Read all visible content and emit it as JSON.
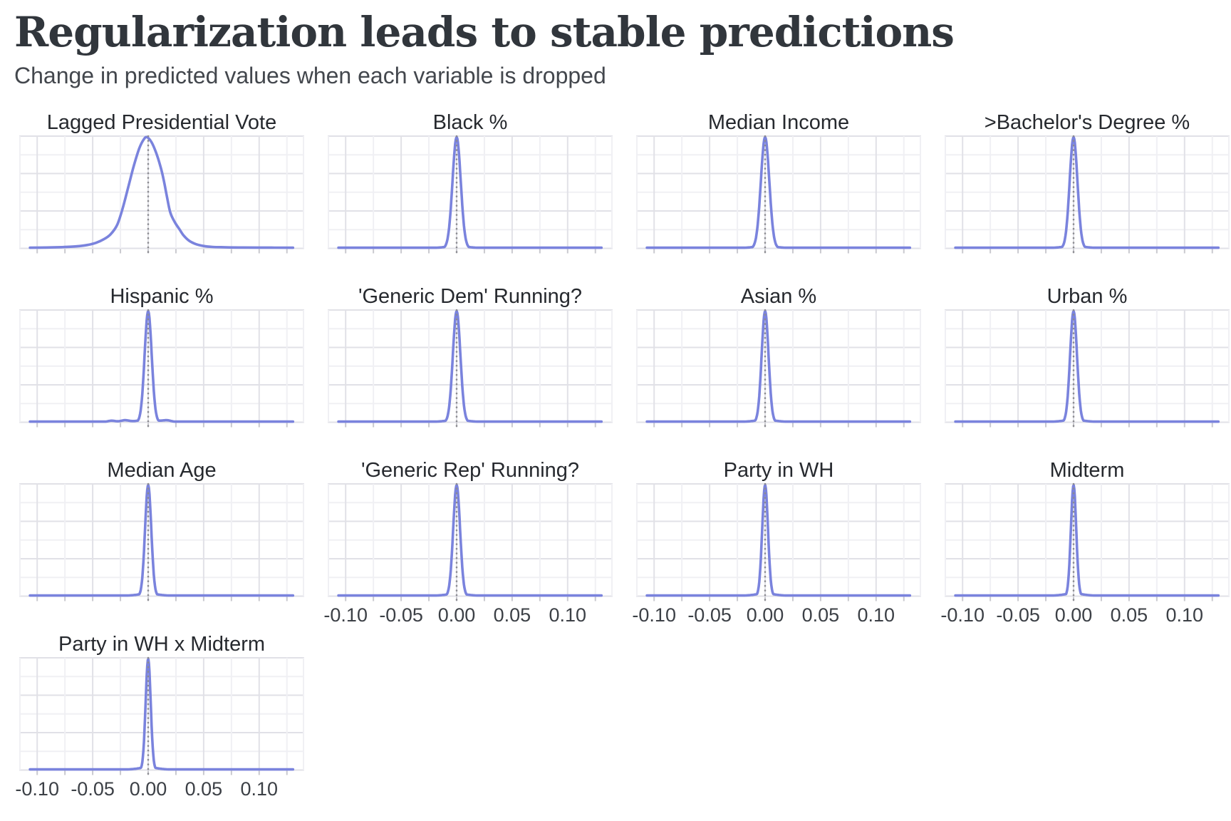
{
  "chart_data": {
    "type": "line",
    "title": "Regularization leads to stable predictions",
    "subtitle": "Change in predicted values when each variable is dropped",
    "x_axis": {
      "tick_values": [
        -0.1,
        -0.05,
        0.0,
        0.05,
        0.1
      ],
      "tick_labels": [
        "-0.10",
        "-0.05",
        "0.00",
        "0.05",
        "0.10"
      ],
      "domain": [
        -0.1162,
        0.1406
      ],
      "gridline_step": 0.025
    },
    "y_axis": {
      "label": "",
      "domain": [
        0,
        1
      ],
      "note": "unlabeled density axis, curves normalized to panel height"
    },
    "reference_line": {
      "x": 0.0,
      "style": "dotted"
    },
    "layout": {
      "rows": 4,
      "cols": 4,
      "legend": "none",
      "grid": "major-and-minor"
    },
    "panels": [
      {
        "label": "Lagged Presidential Vote",
        "row": 1,
        "col": 1,
        "x_axis_labels": false,
        "curve": {
          "kind": "profile",
          "center": 0.0,
          "points": [
            [
              -0.1065,
              0.006
            ],
            [
              -0.092,
              0.008
            ],
            [
              -0.078,
              0.011
            ],
            [
              -0.065,
              0.018
            ],
            [
              -0.055,
              0.03
            ],
            [
              -0.047,
              0.05
            ],
            [
              -0.04,
              0.082
            ],
            [
              -0.034,
              0.125
            ],
            [
              -0.028,
              0.21
            ],
            [
              -0.023,
              0.36
            ],
            [
              -0.018,
              0.55
            ],
            [
              -0.013,
              0.74
            ],
            [
              -0.008,
              0.9
            ],
            [
              -0.004,
              0.98
            ],
            [
              -0.001,
              1.0
            ],
            [
              0.003,
              0.955
            ],
            [
              0.007,
              0.865
            ],
            [
              0.011,
              0.74
            ],
            [
              0.014,
              0.615
            ],
            [
              0.017,
              0.46
            ],
            [
              0.02,
              0.32
            ],
            [
              0.024,
              0.235
            ],
            [
              0.028,
              0.175
            ],
            [
              0.032,
              0.115
            ],
            [
              0.037,
              0.068
            ],
            [
              0.043,
              0.038
            ],
            [
              0.05,
              0.021
            ],
            [
              0.058,
              0.013
            ],
            [
              0.068,
              0.01
            ],
            [
              0.082,
              0.008
            ],
            [
              0.1,
              0.007
            ],
            [
              0.1305,
              0.006
            ]
          ]
        }
      },
      {
        "label": "Black %",
        "row": 1,
        "col": 2,
        "x_axis_labels": false,
        "curve": {
          "kind": "spike",
          "center": 0.0,
          "sigma": 0.0037,
          "peak": 1.0
        }
      },
      {
        "label": "Median Income",
        "row": 1,
        "col": 3,
        "x_axis_labels": false,
        "curve": {
          "kind": "spike",
          "center": 0.0,
          "sigma": 0.0038,
          "peak": 1.0
        }
      },
      {
        "label": ">Bachelor's Degree %",
        "row": 1,
        "col": 4,
        "x_axis_labels": false,
        "curve": {
          "kind": "spike",
          "center": 0.0,
          "sigma": 0.0035,
          "peak": 1.0
        }
      },
      {
        "label": "Hispanic %",
        "row": 2,
        "col": 1,
        "x_axis_labels": false,
        "curve": {
          "kind": "spike",
          "center": 0.0,
          "sigma": 0.0032,
          "peak": 1.0,
          "bumps": [
            [
              -0.033,
              0.012
            ],
            [
              -0.021,
              0.014
            ],
            [
              0.017,
              0.012
            ]
          ]
        }
      },
      {
        "label": "'Generic Dem' Running?",
        "row": 2,
        "col": 2,
        "x_axis_labels": false,
        "curve": {
          "kind": "spike",
          "center": 0.0,
          "sigma": 0.0034,
          "peak": 1.0
        }
      },
      {
        "label": "Asian %",
        "row": 2,
        "col": 3,
        "x_axis_labels": false,
        "curve": {
          "kind": "spike",
          "center": 0.0,
          "sigma": 0.0031,
          "peak": 1.0
        }
      },
      {
        "label": "Urban %",
        "row": 2,
        "col": 4,
        "x_axis_labels": false,
        "curve": {
          "kind": "spike",
          "center": 0.0,
          "sigma": 0.0031,
          "peak": 1.0
        }
      },
      {
        "label": "Median Age",
        "row": 3,
        "col": 1,
        "x_axis_labels": false,
        "curve": {
          "kind": "spike",
          "center": 0.0,
          "sigma": 0.0028,
          "peak": 1.0
        }
      },
      {
        "label": "'Generic Rep' Running?",
        "row": 3,
        "col": 2,
        "x_axis_labels": true,
        "curve": {
          "kind": "spike",
          "center": 0.0,
          "sigma": 0.0031,
          "peak": 1.0
        }
      },
      {
        "label": "Party in WH",
        "row": 3,
        "col": 3,
        "x_axis_labels": true,
        "curve": {
          "kind": "spike",
          "center": 0.0,
          "sigma": 0.0026,
          "peak": 1.0
        }
      },
      {
        "label": "Midterm",
        "row": 3,
        "col": 4,
        "x_axis_labels": true,
        "curve": {
          "kind": "spike",
          "center": 0.0,
          "sigma": 0.0024,
          "peak": 1.0
        }
      },
      {
        "label": "Party in WH x Midterm",
        "row": 4,
        "col": 1,
        "x_axis_labels": true,
        "curve": {
          "kind": "spike",
          "center": 0.0,
          "sigma": 0.0023,
          "peak": 1.0
        }
      }
    ],
    "colors": {
      "curve": "#7a83dd",
      "grid_major": "#e1e1e7",
      "grid_minor": "#f0f0f4",
      "zero_line": "#8b8b90",
      "tick_stub": "#c9c9cf",
      "title_text": "#31363c",
      "subtitle_text": "#43474d",
      "panel_title_text": "#26292e",
      "tick_label_text": "#3c4046",
      "background": "#ffffff"
    }
  }
}
